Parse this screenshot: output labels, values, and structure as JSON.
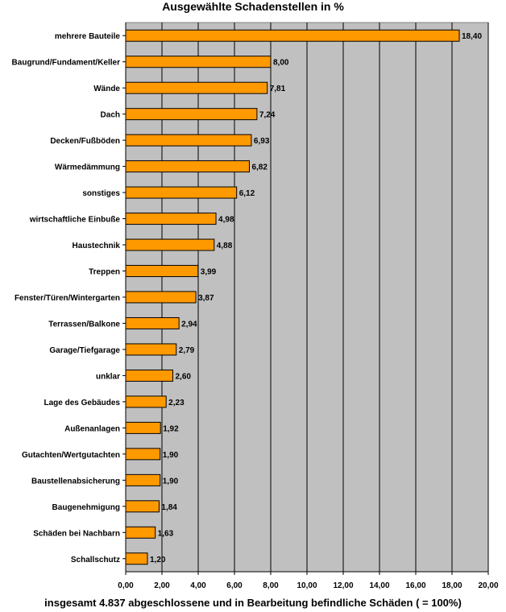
{
  "chart_data": {
    "type": "bar",
    "orientation": "horizontal",
    "title": "Ausgewählte Schadenstellen in %",
    "xlabel": "insgesamt 4.837 abgeschlossene und in Bearbeitung befindliche Schäden ( = 100%)",
    "ylabel": "",
    "xlim": [
      0,
      20
    ],
    "x_ticks": [
      "0,00",
      "2,00",
      "4,00",
      "6,00",
      "8,00",
      "10,00",
      "12,00",
      "14,00",
      "16,00",
      "18,00",
      "20,00"
    ],
    "grid": "vertical",
    "categories": [
      "mehrere Bauteile",
      "Baugrund/Fundament/Keller",
      "Wände",
      "Dach",
      "Decken/Fußböden",
      "Wärmedämmung",
      "sonstiges",
      "wirtschaftliche Einbuße",
      "Haustechnik",
      "Treppen",
      "Fenster/Türen/Wintergarten",
      "Terrassen/Balkone",
      "Garage/Tiefgarage",
      "unklar",
      "Lage des Gebäudes",
      "Außenanlagen",
      "Gutachten/Wertgutachten",
      "Baustellenabsicherung",
      "Baugenehmigung",
      "Schäden bei Nachbarn",
      "Schallschutz"
    ],
    "values": [
      18.4,
      8.0,
      7.81,
      7.24,
      6.93,
      6.82,
      6.12,
      4.98,
      4.88,
      3.99,
      3.87,
      2.94,
      2.79,
      2.6,
      2.23,
      1.92,
      1.9,
      1.9,
      1.84,
      1.63,
      1.2
    ],
    "value_labels": [
      "18,40",
      "8,00",
      "7,81",
      "7,24",
      "6,93",
      "6,82",
      "6,12",
      "4,98",
      "4,88",
      "3,99",
      "3,87",
      "2,94",
      "2,79",
      "2,60",
      "2,23",
      "1,92",
      "1,90",
      "1,90",
      "1,84",
      "1,63",
      "1,20"
    ],
    "colors": {
      "bar_fill": "#FF9900",
      "bar_stroke": "#000000",
      "plot_background": "#C0C0C0",
      "gridline": "#000000"
    }
  }
}
